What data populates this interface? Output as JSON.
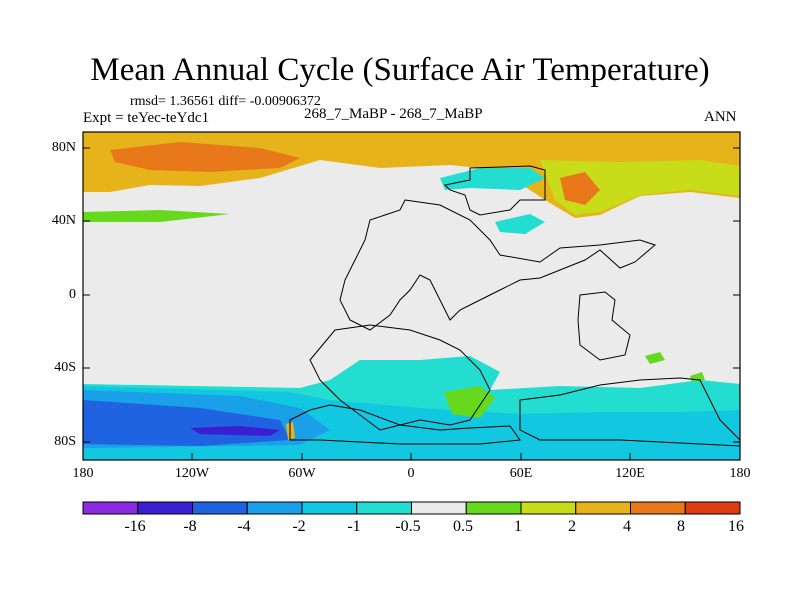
{
  "title": "Mean Annual Cycle (Surface Air Temperature)",
  "stats": "rmsd= 1.36561 diff= -0.00906372",
  "experiment": "Expt = teYec-teYdc1",
  "case_label": "268_7_MaBP - 268_7_MaBP",
  "season": "ANN",
  "y_axis_labels": [
    "80N",
    "40N",
    "0",
    "40S",
    "80S"
  ],
  "x_axis_labels": [
    "180",
    "120W",
    "60W",
    "0",
    "60E",
    "120E",
    "180"
  ],
  "colorbar": {
    "labels": [
      "-16",
      "-8",
      "-4",
      "-2",
      "-1",
      "-0.5",
      "0.5",
      "1",
      "2",
      "4",
      "8",
      "16"
    ],
    "colors": [
      "#8a2be2",
      "#3a1fd0",
      "#1f63e0",
      "#1aa0e8",
      "#12c8e0",
      "#22ddd0",
      "#ebebeb",
      "#66d81e",
      "#c8dc1a",
      "#e6b41a",
      "#e8781a",
      "#e03c14"
    ]
  },
  "colors": {
    "land_neutral": "#ebebeb",
    "coast": "#000000"
  }
}
